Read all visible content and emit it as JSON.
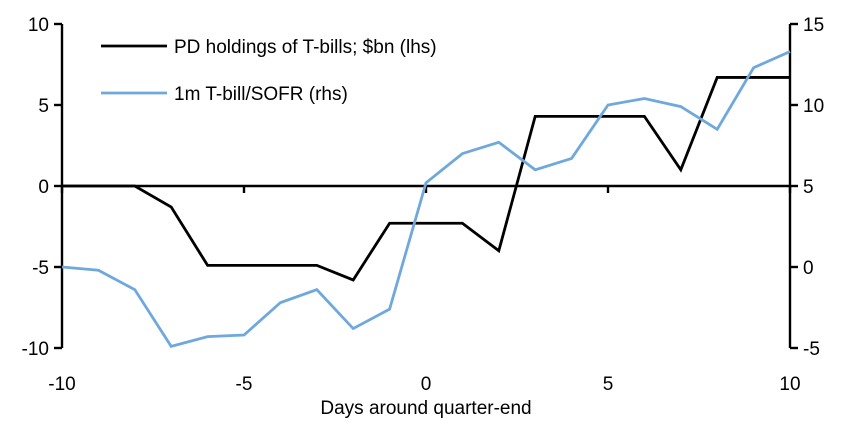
{
  "chart_data": {
    "type": "line",
    "x": [
      -10,
      -9,
      -8,
      -7,
      -6,
      -5,
      -4,
      -3,
      -2,
      -1,
      0,
      1,
      2,
      3,
      4,
      5,
      6,
      7,
      8,
      9,
      10
    ],
    "series": [
      {
        "name": "PD holdings of T-bills; $bn (lhs)",
        "axis": "left",
        "color": "#000000",
        "values": [
          0,
          0,
          0,
          -1.3,
          -4.9,
          -4.9,
          -4.9,
          -4.9,
          -5.8,
          -2.3,
          -2.3,
          -2.3,
          -4.0,
          4.3,
          4.3,
          4.3,
          4.3,
          1.0,
          6.7,
          6.7,
          6.7
        ]
      },
      {
        "name": "1m T-bill/SOFR (rhs)",
        "axis": "right",
        "color": "#6fa8dc",
        "values": [
          0.0,
          -0.2,
          -1.4,
          -4.9,
          -4.3,
          -4.2,
          -2.2,
          -1.4,
          -3.8,
          -2.6,
          5.2,
          7.0,
          7.7,
          6.0,
          6.7,
          10.0,
          10.4,
          9.9,
          8.5,
          12.3,
          13.3
        ]
      }
    ],
    "xlabel": "Days around quarter-end",
    "left_axis": {
      "min": -10,
      "max": 10,
      "ticks": [
        10,
        5,
        0,
        -5,
        -10
      ]
    },
    "right_axis": {
      "min": -5,
      "max": 15,
      "ticks": [
        15,
        10,
        5,
        0,
        -5
      ]
    },
    "x_ticks": [
      -10,
      -5,
      0,
      5,
      10
    ],
    "grid": false,
    "legend_position": "top-left"
  }
}
